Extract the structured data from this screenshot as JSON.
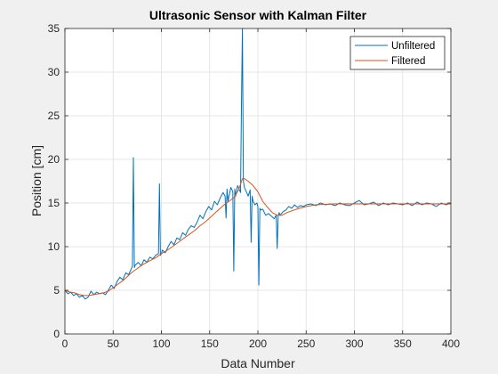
{
  "chart_data": {
    "type": "line",
    "title": "Ultrasonic Sensor with Kalman Filter",
    "xlabel": "Data Number",
    "ylabel": "Position [cm]",
    "xlim": [
      0,
      400
    ],
    "ylim": [
      0,
      35
    ],
    "xticks": [
      0,
      50,
      100,
      150,
      200,
      250,
      300,
      350,
      400
    ],
    "yticks": [
      0,
      5,
      10,
      15,
      20,
      25,
      30,
      35
    ],
    "grid": true,
    "legend_position": "top-right",
    "series": [
      {
        "name": "Unfiltered",
        "color": "#0072BD",
        "x": [
          0,
          3,
          6,
          9,
          12,
          15,
          18,
          21,
          24,
          27,
          30,
          33,
          36,
          39,
          42,
          45,
          48,
          51,
          54,
          57,
          60,
          63,
          66,
          69,
          70,
          71,
          72,
          73,
          76,
          79,
          82,
          85,
          88,
          91,
          94,
          97,
          98,
          99,
          100,
          101,
          104,
          107,
          110,
          113,
          116,
          119,
          122,
          125,
          128,
          131,
          134,
          137,
          140,
          143,
          146,
          149,
          152,
          155,
          158,
          161,
          164,
          166,
          167,
          168,
          169,
          172,
          174,
          175,
          176,
          177,
          179,
          182,
          183,
          184,
          185,
          186,
          188,
          190,
          192,
          193,
          194,
          195,
          197,
          199,
          200,
          201,
          202,
          203,
          205,
          208,
          211,
          214,
          217,
          219,
          220,
          221,
          222,
          223,
          226,
          229,
          232,
          235,
          238,
          241,
          244,
          247,
          250,
          255,
          260,
          265,
          270,
          275,
          280,
          285,
          290,
          295,
          300,
          305,
          310,
          315,
          320,
          325,
          330,
          335,
          340,
          345,
          350,
          355,
          360,
          365,
          370,
          375,
          380,
          385,
          390,
          395,
          400
        ],
        "y": [
          5.0,
          4.6,
          4.8,
          4.4,
          4.6,
          4.2,
          4.4,
          4.0,
          4.2,
          4.9,
          4.5,
          4.8,
          4.6,
          4.7,
          4.5,
          5.0,
          5.6,
          5.2,
          6.0,
          6.5,
          6.2,
          7.0,
          6.8,
          7.5,
          7.8,
          20.2,
          7.6,
          7.9,
          8.2,
          7.8,
          8.5,
          8.2,
          8.8,
          8.6,
          9.0,
          9.2,
          17.2,
          9.0,
          9.2,
          9.6,
          9.3,
          10.0,
          10.6,
          10.2,
          11.0,
          10.8,
          11.6,
          11.3,
          12.0,
          12.4,
          12.2,
          12.8,
          13.6,
          13.2,
          14.0,
          14.6,
          14.2,
          15.2,
          14.8,
          15.6,
          16.2,
          15.8,
          13.3,
          16.6,
          15.2,
          16.8,
          16.3,
          7.2,
          16.6,
          15.8,
          17.0,
          16.2,
          27.0,
          35.0,
          17.5,
          16.8,
          16.3,
          15.8,
          16.5,
          10.5,
          15.8,
          15.2,
          14.8,
          15.0,
          14.6,
          5.6,
          14.4,
          14.2,
          14.3,
          13.6,
          13.8,
          13.5,
          13.2,
          13.6,
          9.8,
          13.5,
          13.9,
          13.6,
          14.0,
          14.2,
          14.6,
          14.4,
          14.8,
          14.5,
          14.7,
          14.6,
          14.8,
          14.9,
          14.7,
          15.0,
          14.8,
          14.9,
          14.7,
          15.0,
          14.8,
          14.7,
          15.0,
          15.3,
          14.8,
          14.9,
          15.1,
          14.7,
          15.0,
          14.8,
          15.0,
          14.9,
          14.8,
          15.0,
          14.7,
          15.1,
          14.8,
          15.0,
          14.9,
          14.6,
          15.0,
          14.8,
          15.0
        ]
      },
      {
        "name": "Filtered",
        "color": "#D95319",
        "x": [
          0,
          5,
          10,
          15,
          20,
          25,
          30,
          35,
          40,
          45,
          50,
          55,
          60,
          65,
          70,
          75,
          80,
          85,
          90,
          95,
          100,
          105,
          110,
          115,
          120,
          125,
          130,
          135,
          140,
          145,
          150,
          155,
          160,
          165,
          170,
          175,
          180,
          184,
          186,
          190,
          195,
          200,
          205,
          210,
          215,
          220,
          225,
          230,
          240,
          250,
          260,
          280,
          300,
          320,
          340,
          360,
          380,
          400
        ],
        "y": [
          5.0,
          4.8,
          4.7,
          4.5,
          4.4,
          4.4,
          4.5,
          4.6,
          4.7,
          4.9,
          5.3,
          5.7,
          6.1,
          6.6,
          7.1,
          7.5,
          7.9,
          8.2,
          8.5,
          8.8,
          9.2,
          9.5,
          9.9,
          10.3,
          10.7,
          11.1,
          11.5,
          11.9,
          12.4,
          12.8,
          13.3,
          13.8,
          14.3,
          14.8,
          15.2,
          15.6,
          16.5,
          17.8,
          17.8,
          17.5,
          17.0,
          16.3,
          15.2,
          14.5,
          13.9,
          13.6,
          13.6,
          13.9,
          14.3,
          14.6,
          14.8,
          14.9,
          14.9,
          14.9,
          14.9,
          14.9,
          14.9,
          14.9
        ]
      }
    ]
  }
}
